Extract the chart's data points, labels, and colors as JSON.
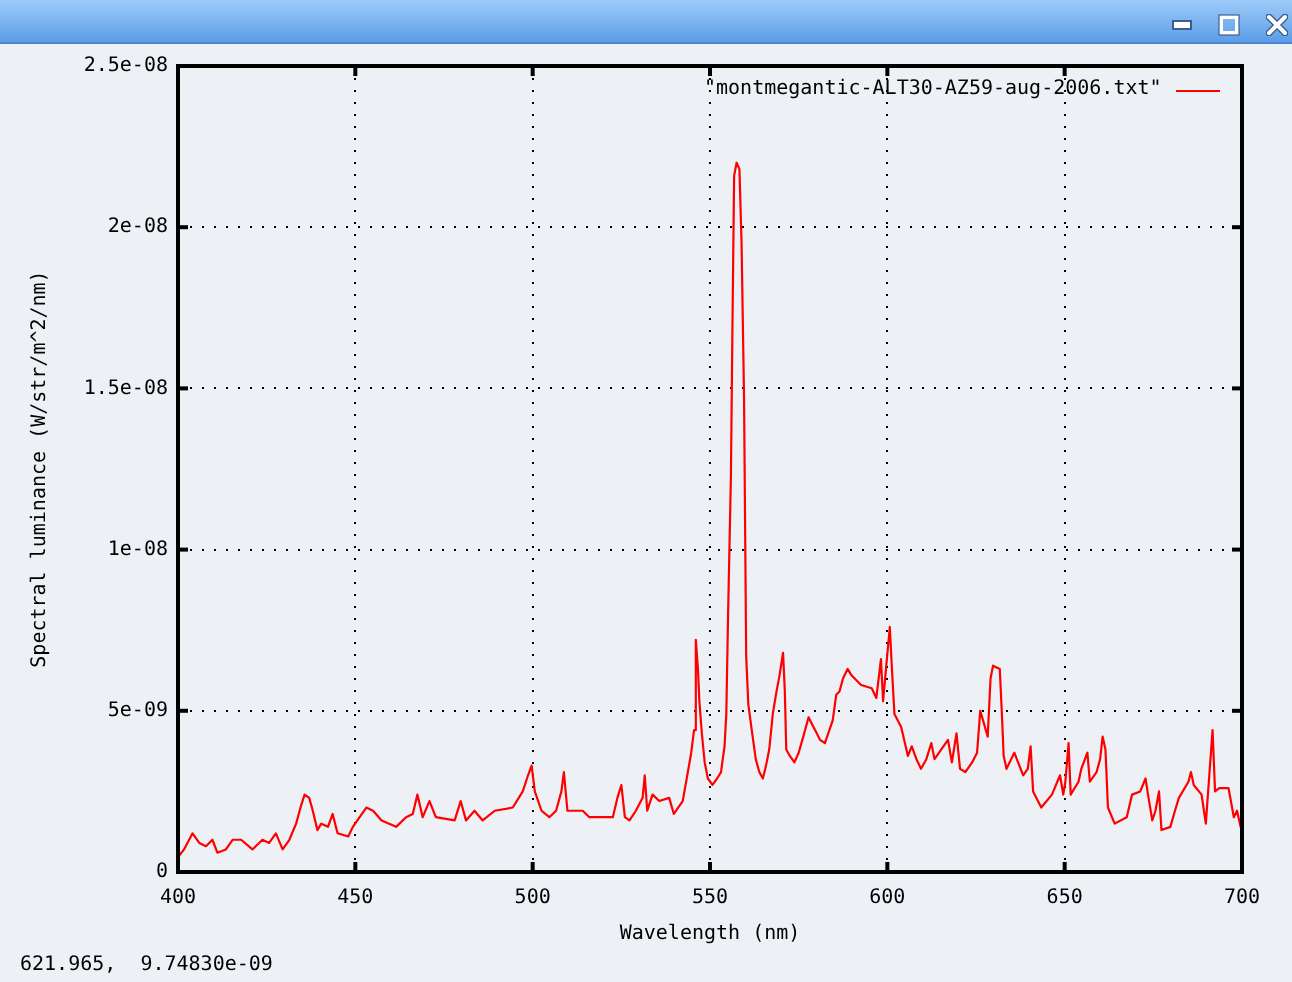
{
  "chart_data": {
    "type": "line",
    "xlabel": "Wavelength (nm)",
    "ylabel": "Spectral luminance (W/str/m^2/nm)",
    "annotations": [
      "621.965,  9.74830e-09"
    ],
    "xlim": [
      400,
      700
    ],
    "ylim": [
      0,
      2.5e-08
    ],
    "xticks": [
      400,
      450,
      500,
      550,
      600,
      650,
      700
    ],
    "yticks": [
      0,
      {
        "value": 5e-09,
        "label": "5e-09"
      },
      {
        "value": 1e-08,
        "label": "1e-08"
      },
      {
        "value": 1.5e-08,
        "label": "1.5e-08"
      },
      {
        "value": 2e-08,
        "label": "2e-08"
      },
      {
        "value": 2.5e-08,
        "label": "2.5e-08"
      }
    ],
    "grid": true,
    "legend": "top right",
    "x": [
      400.3,
      401.7,
      404.1,
      406.0,
      407.9,
      409.7,
      411.1,
      413.5,
      415.4,
      417.8,
      421.0,
      423.8,
      425.7,
      427.6,
      429.5,
      431.4,
      433.3,
      434.8,
      435.7,
      437.0,
      438.0,
      439.3,
      440.4,
      442.3,
      443.6,
      445.0,
      448.0,
      449.3,
      453.1,
      455.0,
      457.4,
      461.5,
      464.3,
      466.2,
      467.5,
      469.0,
      470.9,
      472.7,
      478.0,
      479.7,
      481.2,
      483.6,
      485.9,
      489.3,
      494.4,
      497.2,
      498.7,
      499.7,
      500.6,
      502.5,
      504.7,
      506.6,
      508.1,
      508.8,
      509.8,
      514.1,
      516.0,
      522.6,
      523.9,
      525.0,
      526.0,
      527.3,
      529.1,
      531.0,
      531.6,
      532.3,
      533.8,
      535.7,
      538.5,
      539.8,
      542.3,
      543.6,
      544.7,
      545.5,
      546.0,
      546.6,
      547.0,
      547.7,
      548.5,
      549.4,
      550.7,
      552.0,
      553.1,
      554.1,
      554.6,
      555.1,
      555.9,
      556.3,
      556.8,
      557.5,
      558.3,
      558.9,
      559.6,
      560.2,
      560.8,
      561.9,
      562.9,
      563.9,
      564.9,
      565.8,
      566.7,
      567.7,
      568.6,
      569.6,
      570.6,
      571.1,
      571.5,
      572.5,
      573.8,
      575.0,
      576.3,
      577.8,
      578.7,
      580.1,
      581.0,
      582.4,
      584.6,
      585.6,
      586.5,
      587.5,
      588.8,
      589.9,
      592.6,
      595.6,
      596.9,
      598.2,
      598.8,
      599.7,
      600.7,
      601.2,
      602.0,
      603.9,
      605.8,
      606.9,
      608.2,
      609.5,
      611.0,
      612.4,
      613.3,
      617.1,
      618.2,
      619.5,
      620.5,
      622.0,
      623.9,
      625.3,
      626.2,
      628.3,
      629.1,
      629.8,
      631.7,
      632.3,
      632.8,
      633.6,
      635.8,
      638.3,
      639.6,
      640.4,
      641.1,
      643.4,
      646.4,
      648.7,
      649.6,
      650.2,
      651.1,
      651.7,
      653.9,
      654.7,
      656.4,
      657.1,
      659.0,
      660.0,
      660.7,
      661.5,
      662.2,
      664.1,
      667.5,
      669.0,
      671.3,
      672.8,
      673.5,
      674.7,
      675.6,
      676.6,
      677.3,
      679.8,
      681.1,
      682.2,
      684.9,
      685.6,
      686.4,
      688.6,
      689.8,
      691.7,
      692.4,
      693.6,
      696.2,
      697.7,
      698.6,
      699.6
    ],
    "series": [
      {
        "name": "\"montmegantic-ALT30-AZ59-aug-2006.txt\"",
        "color": "#ff0000",
        "values": [
          5e-10,
          7e-10,
          1.2e-09,
          9e-10,
          8e-10,
          1e-09,
          6e-10,
          7e-10,
          1e-09,
          1e-09,
          7e-10,
          1e-09,
          9e-10,
          1.2e-09,
          7e-10,
          1e-09,
          1.5e-09,
          2.1e-09,
          2.4e-09,
          2.3e-09,
          1.9e-09,
          1.3e-09,
          1.5e-09,
          1.4e-09,
          1.8e-09,
          1.2e-09,
          1.1e-09,
          1.4e-09,
          2e-09,
          1.9e-09,
          1.6e-09,
          1.4e-09,
          1.7e-09,
          1.8e-09,
          2.4e-09,
          1.7e-09,
          2.2e-09,
          1.7e-09,
          1.6e-09,
          2.2e-09,
          1.6e-09,
          1.9e-09,
          1.6e-09,
          1.9e-09,
          2e-09,
          2.5e-09,
          3e-09,
          3.3e-09,
          2.5e-09,
          1.9e-09,
          1.7e-09,
          1.9e-09,
          2.5e-09,
          3.1e-09,
          1.9e-09,
          1.9e-09,
          1.7e-09,
          1.7e-09,
          2.3e-09,
          2.7e-09,
          1.7e-09,
          1.6e-09,
          1.9e-09,
          2.3e-09,
          3e-09,
          1.9e-09,
          2.4e-09,
          2.2e-09,
          2.3e-09,
          1.8e-09,
          2.2e-09,
          3e-09,
          3.7e-09,
          4.4e-09,
          7.2e-09,
          6.3e-09,
          5.3e-09,
          4.3e-09,
          3.4e-09,
          2.9e-09,
          2.7e-09,
          2.9e-09,
          3.1e-09,
          3.9e-09,
          4.9e-09,
          8e-09,
          1.23e-08,
          1.66e-08,
          2.16e-08,
          2.2e-08,
          2.18e-08,
          1.95e-08,
          1.47e-08,
          6.7e-09,
          5.2e-09,
          4.3e-09,
          3.5e-09,
          3.1e-09,
          2.9e-09,
          3.3e-09,
          3.8e-09,
          4.9e-09,
          5.5e-09,
          6.1e-09,
          6.8e-09,
          5.6e-09,
          3.8e-09,
          3.6e-09,
          3.4e-09,
          3.7e-09,
          4.2e-09,
          4.8e-09,
          4.6e-09,
          4.3e-09,
          4.1e-09,
          4e-09,
          4.7e-09,
          5.5e-09,
          5.6e-09,
          6e-09,
          6.3e-09,
          6.1e-09,
          5.8e-09,
          5.7e-09,
          5.4e-09,
          6.6e-09,
          5.3e-09,
          6.4e-09,
          7.6e-09,
          6.5e-09,
          4.9e-09,
          4.5e-09,
          3.6e-09,
          3.9e-09,
          3.5e-09,
          3.2e-09,
          3.5e-09,
          4e-09,
          3.5e-09,
          4.1e-09,
          3.4e-09,
          4.3e-09,
          3.2e-09,
          3.1e-09,
          3.4e-09,
          3.7e-09,
          5e-09,
          4.2e-09,
          6e-09,
          6.4e-09,
          6.3e-09,
          4.9e-09,
          3.6e-09,
          3.2e-09,
          3.7e-09,
          3e-09,
          3.2e-09,
          3.9e-09,
          2.5e-09,
          2e-09,
          2.4e-09,
          3e-09,
          2.4e-09,
          2.8e-09,
          4e-09,
          2.4e-09,
          2.8e-09,
          3.2e-09,
          3.7e-09,
          2.8e-09,
          3.1e-09,
          3.5e-09,
          4.2e-09,
          3.8e-09,
          2e-09,
          1.5e-09,
          1.7e-09,
          2.4e-09,
          2.5e-09,
          2.9e-09,
          2.4e-09,
          1.6e-09,
          1.9e-09,
          2.5e-09,
          1.3e-09,
          1.4e-09,
          1.9e-09,
          2.3e-09,
          2.8e-09,
          3.1e-09,
          2.7e-09,
          2.4e-09,
          1.5e-09,
          4.4e-09,
          2.5e-09,
          2.6e-09,
          2.6e-09,
          1.7e-09,
          1.9e-09,
          1.4e-09
        ]
      }
    ]
  }
}
